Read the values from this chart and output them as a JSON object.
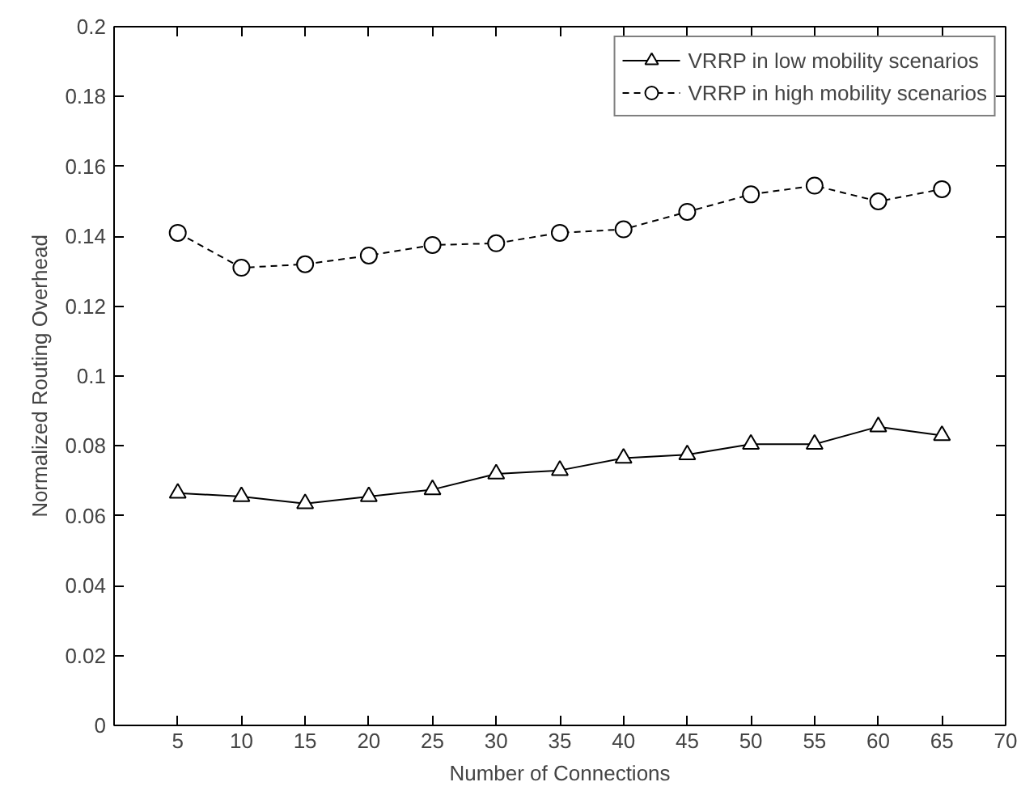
{
  "chart_data": {
    "type": "line",
    "xlabel": "Number of Connections",
    "ylabel": "Normalized Routing Overhead",
    "x": [
      5,
      10,
      15,
      20,
      25,
      30,
      35,
      40,
      45,
      50,
      55,
      60,
      65
    ],
    "xlim": [
      0,
      70
    ],
    "xticks": [
      5,
      10,
      15,
      20,
      25,
      30,
      35,
      40,
      45,
      50,
      55,
      60,
      65,
      70
    ],
    "ylim": [
      0,
      0.2
    ],
    "yticks": [
      0,
      0.02,
      0.04,
      0.06,
      0.08,
      0.1,
      0.12,
      0.14,
      0.16,
      0.18,
      0.2
    ],
    "grid": false,
    "legend": "top right",
    "series": [
      {
        "name": "VRRP in low mobility scenarios",
        "color": "#000000",
        "marker": "triangle",
        "line_style": "solid",
        "values": [
          0.0665,
          0.0655,
          0.0635,
          0.0655,
          0.0675,
          0.072,
          0.073,
          0.0765,
          0.0775,
          0.0805,
          0.0805,
          0.0855,
          0.083
        ]
      },
      {
        "name": "VRRP in high mobility scenarios",
        "color": "#000000",
        "marker": "circle",
        "line_style": "dashed",
        "values": [
          0.141,
          0.131,
          0.132,
          0.1345,
          0.1375,
          0.138,
          0.141,
          0.142,
          0.147,
          0.152,
          0.1545,
          0.15,
          0.1535
        ]
      }
    ]
  }
}
